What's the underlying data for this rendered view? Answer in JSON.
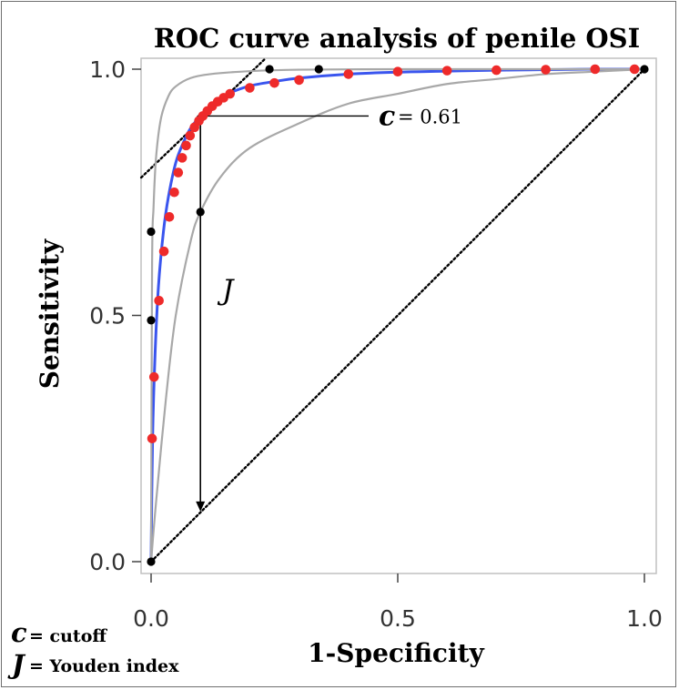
{
  "chart_data": {
    "type": "line",
    "title": "ROC curve analysis of penile OSI",
    "xlabel": "1-Specificity",
    "ylabel": "Sensitivity",
    "xlim": [
      0,
      1
    ],
    "ylim": [
      0,
      1
    ],
    "x_ticks": [
      "0.0",
      "0.5",
      "1.0"
    ],
    "y_ticks": [
      "0.0",
      "0.5",
      "1.0"
    ],
    "series": [
      {
        "name": "fitted ROC curve",
        "color": "#3a55ee",
        "x": [
          0,
          0.003,
          0.008,
          0.015,
          0.025,
          0.035,
          0.05,
          0.065,
          0.08,
          0.1,
          0.12,
          0.14,
          0.16,
          0.2,
          0.25,
          0.3,
          0.4,
          0.5,
          0.6,
          0.7,
          0.8,
          0.9,
          1.0
        ],
        "y": [
          0,
          0.25,
          0.42,
          0.56,
          0.67,
          0.74,
          0.81,
          0.85,
          0.88,
          0.905,
          0.925,
          0.94,
          0.952,
          0.966,
          0.975,
          0.982,
          0.99,
          0.994,
          0.996,
          0.998,
          0.999,
          1.0,
          1.0
        ]
      },
      {
        "name": "upper confidence band",
        "color": "#a8a8a8",
        "x": [
          0,
          0.002,
          0.005,
          0.01,
          0.02,
          0.035,
          0.05,
          0.08,
          0.12,
          0.2,
          0.3,
          0.5,
          0.7,
          1.0
        ],
        "y": [
          0,
          0.6,
          0.72,
          0.82,
          0.9,
          0.945,
          0.965,
          0.982,
          0.99,
          0.996,
          0.999,
          1.0,
          1.0,
          1.0
        ]
      },
      {
        "name": "lower confidence band",
        "color": "#a8a8a8",
        "x": [
          0,
          0.01,
          0.03,
          0.05,
          0.08,
          0.1,
          0.14,
          0.2,
          0.3,
          0.4,
          0.5,
          0.6,
          0.7,
          0.8,
          0.9,
          1.0
        ],
        "y": [
          0,
          0.12,
          0.33,
          0.5,
          0.65,
          0.71,
          0.78,
          0.84,
          0.89,
          0.93,
          0.95,
          0.97,
          0.98,
          0.99,
          0.995,
          1.0
        ]
      },
      {
        "name": "empirical points",
        "color": "#000000",
        "points": [
          [
            0,
            0
          ],
          [
            0,
            0.49
          ],
          [
            0,
            0.67
          ],
          [
            0.1,
            0.71
          ],
          [
            0.1,
            0.9
          ],
          [
            0.24,
            1.0
          ],
          [
            0.34,
            1.0
          ],
          [
            1.0,
            1.0
          ]
        ]
      },
      {
        "name": "cutoff points",
        "color": "#ee2a2a",
        "points": [
          [
            0.002,
            0.25
          ],
          [
            0.006,
            0.375
          ],
          [
            0.016,
            0.53
          ],
          [
            0.026,
            0.63
          ],
          [
            0.037,
            0.7
          ],
          [
            0.047,
            0.75
          ],
          [
            0.055,
            0.79
          ],
          [
            0.063,
            0.82
          ],
          [
            0.071,
            0.845
          ],
          [
            0.079,
            0.865
          ],
          [
            0.088,
            0.882
          ],
          [
            0.097,
            0.895
          ],
          [
            0.105,
            0.905
          ],
          [
            0.114,
            0.915
          ],
          [
            0.124,
            0.925
          ],
          [
            0.135,
            0.934
          ],
          [
            0.147,
            0.942
          ],
          [
            0.16,
            0.95
          ],
          [
            0.2,
            0.962
          ],
          [
            0.25,
            0.972
          ],
          [
            0.3,
            0.978
          ],
          [
            0.4,
            0.99
          ],
          [
            0.5,
            0.995
          ],
          [
            0.6,
            0.997
          ],
          [
            0.7,
            0.998
          ],
          [
            0.8,
            0.999
          ],
          [
            0.9,
            1.0
          ],
          [
            0.98,
            1.0
          ]
        ]
      }
    ],
    "reference_lines": [
      {
        "name": "chance diagonal",
        "from": [
          0,
          0
        ],
        "to": [
          1,
          1
        ],
        "style": "dotted"
      },
      {
        "name": "tangent at optimal cutoff",
        "from": [
          -0.02,
          0.78
        ],
        "to": [
          0.23,
          1.02
        ],
        "style": "dotted"
      }
    ],
    "annotations": {
      "cutoff_point": {
        "x": 0.1,
        "y": 0.905
      },
      "c_label": "c",
      "c_value": "= 0.61",
      "j_label": "J",
      "legend_c_symbol": "c",
      "legend_c_text": "= cutoff",
      "legend_j_symbol": "J",
      "legend_j_text": "= Youden index"
    }
  }
}
